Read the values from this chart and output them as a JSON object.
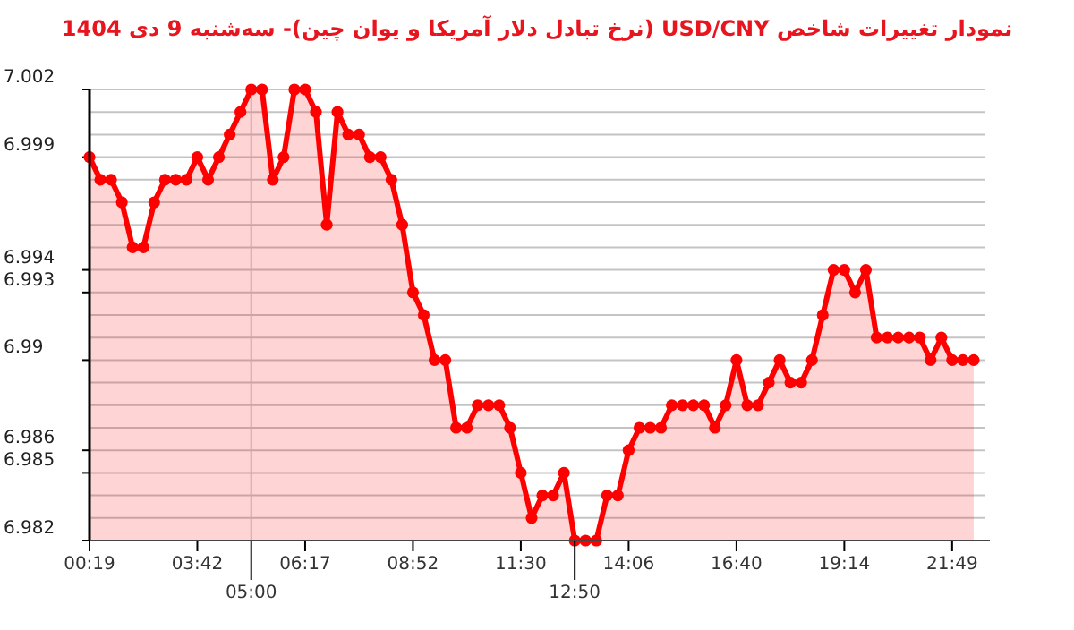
{
  "chart_data": {
    "type": "area",
    "title": "نمودار تغییرات شاخص USD/CNY (نرخ تبادل دلار آمریکا و یوان چین)- سه‌شنبه  9 دی 1404",
    "categories": [
      "00:19",
      null,
      null,
      null,
      null,
      null,
      null,
      null,
      null,
      null,
      "03:42",
      null,
      null,
      null,
      null,
      "05:00",
      null,
      null,
      null,
      null,
      "06:17",
      null,
      null,
      null,
      null,
      null,
      null,
      null,
      null,
      null,
      "08:52",
      null,
      null,
      null,
      null,
      null,
      null,
      null,
      null,
      null,
      "11:30",
      null,
      null,
      null,
      null,
      "12:50",
      null,
      null,
      null,
      null,
      "14:06",
      null,
      null,
      null,
      null,
      null,
      null,
      null,
      null,
      null,
      "16:40",
      null,
      null,
      null,
      null,
      null,
      null,
      null,
      null,
      null,
      "19:14",
      null,
      null,
      null,
      null,
      null,
      null,
      null,
      null,
      null,
      "21:49",
      null,
      null
    ],
    "series": [
      {
        "color": "#ff0000",
        "values": [
          6.999,
          6.998,
          6.998,
          6.997,
          6.995,
          6.995,
          6.997,
          6.998,
          6.998,
          6.998,
          6.999,
          6.998,
          6.999,
          7.0,
          7.001,
          7.002,
          7.002,
          6.998,
          6.999,
          7.002,
          7.002,
          7.001,
          6.996,
          7.001,
          7.0,
          7.0,
          6.999,
          6.999,
          6.998,
          6.996,
          6.993,
          6.992,
          6.99,
          6.99,
          6.987,
          6.987,
          6.988,
          6.988,
          6.988,
          6.987,
          6.985,
          6.983,
          6.984,
          6.984,
          6.985,
          6.982,
          6.982,
          6.982,
          6.984,
          6.984,
          6.986,
          6.987,
          6.987,
          6.987,
          6.988,
          6.988,
          6.988,
          6.988,
          6.987,
          6.988,
          6.99,
          6.988,
          6.988,
          6.989,
          6.99,
          6.989,
          6.989,
          6.99,
          6.992,
          6.994,
          6.994,
          6.993,
          6.994,
          6.991,
          6.991,
          6.991,
          6.991,
          6.991,
          6.99,
          6.991,
          6.99,
          6.99,
          6.99
        ]
      }
    ],
    "ylim": [
      6.982,
      7.002
    ],
    "yticks": [
      6.982,
      {
        "value": 6.983,
        "label": null
      },
      {
        "value": 6.984,
        "label": null
      },
      6.985,
      6.986,
      {
        "value": 6.987,
        "label": null
      },
      {
        "value": 6.988,
        "label": null
      },
      {
        "value": 6.989,
        "label": null
      },
      {
        "value": 6.99,
        "label": "6.99"
      },
      {
        "value": 6.991,
        "label": null
      },
      {
        "value": 6.992,
        "label": null
      },
      6.993,
      6.994,
      {
        "value": 6.995,
        "label": null
      },
      {
        "value": 6.996,
        "label": null
      },
      {
        "value": 6.997,
        "label": null
      },
      {
        "value": 6.998,
        "label": null
      },
      6.999,
      {
        "value": 7.0,
        "label": null
      },
      {
        "value": 7.001,
        "label": null
      },
      7.002
    ],
    "grid": "y",
    "marker": "circle",
    "line_style": "solid",
    "ref_lines": [
      {
        "axis": "x",
        "value": "05:00",
        "color": "#c8c8c8"
      }
    ]
  }
}
